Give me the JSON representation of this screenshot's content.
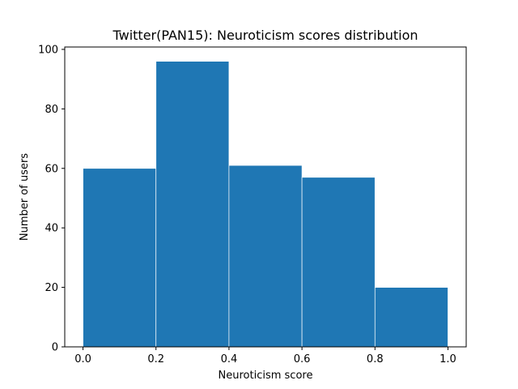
{
  "chart_data": {
    "type": "bar",
    "title": "Twitter(PAN15): Neuroticism scores distribution",
    "xlabel": "Neuroticism score",
    "ylabel": "Number of users",
    "bins": [
      {
        "x0": 0.0,
        "x1": 0.2,
        "value": 60
      },
      {
        "x0": 0.2,
        "x1": 0.4,
        "value": 96
      },
      {
        "x0": 0.4,
        "x1": 0.6,
        "value": 61
      },
      {
        "x0": 0.6,
        "x1": 0.8,
        "value": 57
      },
      {
        "x0": 0.8,
        "x1": 1.0,
        "value": 20
      }
    ],
    "xlim": [
      -0.05,
      1.05
    ],
    "ylim": [
      0,
      100.8
    ],
    "xticks": [
      "0.0",
      "0.2",
      "0.4",
      "0.6",
      "0.8",
      "1.0"
    ],
    "yticks": [
      "0",
      "20",
      "40",
      "60",
      "80",
      "100"
    ],
    "bar_color": "#1f77b4",
    "edge_color": "#ffffff",
    "grid": false,
    "legend": false
  }
}
